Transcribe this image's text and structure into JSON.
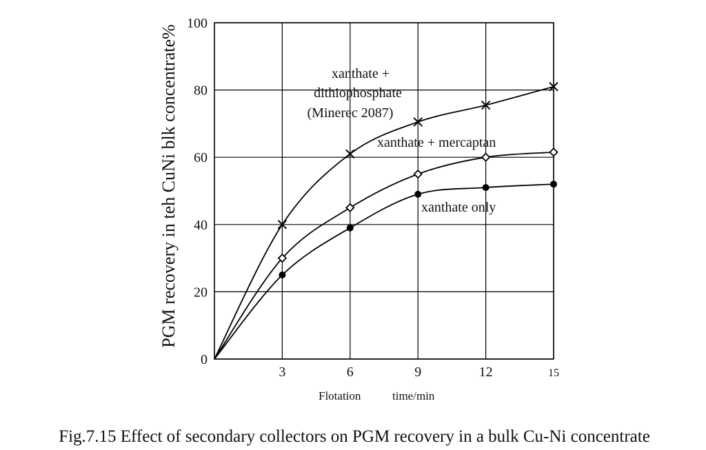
{
  "chart_data": {
    "type": "line",
    "title": "",
    "xlabel_left": "Flotation",
    "xlabel_right": "time/min",
    "ylabel": "PGM recovery in teh CuNi blk concentrate%",
    "xlim": [
      0,
      15
    ],
    "ylim": [
      0,
      100
    ],
    "x_ticks": [
      "3",
      "6",
      "9",
      "12",
      "15"
    ],
    "y_ticks": [
      "0",
      "20",
      "40",
      "60",
      "80",
      "100"
    ],
    "grid": true,
    "x": [
      0,
      3,
      6,
      9,
      12,
      15
    ],
    "series": [
      {
        "name": "xanthate + dithiophosphate (Minerec 2087)",
        "label_lines": [
          "xanthate +",
          "dithiophosphate",
          "(Minerec 2087)"
        ],
        "marker": "x",
        "values": [
          0,
          40,
          61,
          70.5,
          75.5,
          81
        ]
      },
      {
        "name": "xanthate + mercaptan",
        "label_lines": [
          "xanthate + mercaptan"
        ],
        "marker": "diamond",
        "values": [
          0,
          30,
          45,
          55,
          60,
          61.5
        ]
      },
      {
        "name": "xanthate only",
        "label_lines": [
          "xanthate only"
        ],
        "marker": "dot",
        "values": [
          0,
          25,
          39,
          49,
          51,
          52
        ]
      }
    ]
  },
  "caption": "Fig.7.15 Effect of secondary collectors on PGM recovery in a bulk Cu-Ni concentrate"
}
